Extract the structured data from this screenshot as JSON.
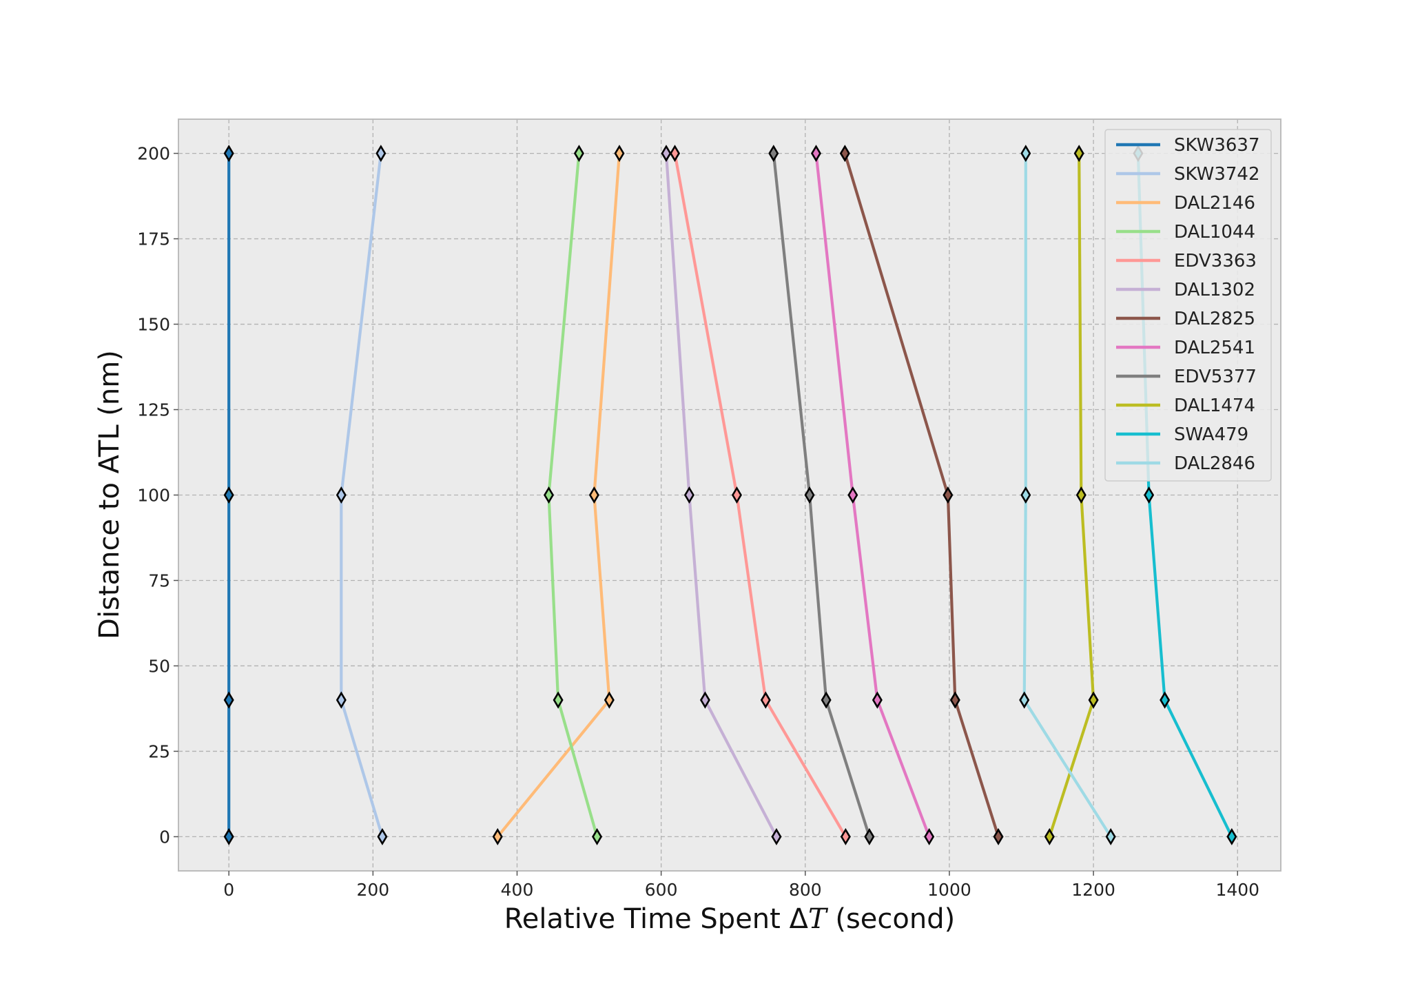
{
  "chart_data": {
    "type": "line",
    "xlabel": "Relative Time Spent ΔT (second)",
    "xlabel_parts": {
      "prefix": "Relative Time Spent ",
      "symbol_delta": "Δ",
      "symbol_var": "T",
      "suffix": " (second)"
    },
    "ylabel": "Distance to ATL (nm)",
    "xlim": [
      -70,
      1460
    ],
    "ylim": [
      -10,
      210
    ],
    "xticks": [
      0,
      200,
      400,
      600,
      800,
      1000,
      1200,
      1400
    ],
    "yticks": [
      0,
      25,
      50,
      75,
      100,
      125,
      150,
      175,
      200
    ],
    "grid": true,
    "legend_position": "top-right",
    "marker": "thin_diamond",
    "series": [
      {
        "name": "SKW3637",
        "color": "#1f77b4",
        "points": [
          [
            0,
            200
          ],
          [
            0,
            100
          ],
          [
            0,
            40
          ],
          [
            0,
            0
          ]
        ]
      },
      {
        "name": "SKW3742",
        "color": "#aec7e8",
        "points": [
          [
            211,
            200
          ],
          [
            156,
            100
          ],
          [
            156,
            40
          ],
          [
            213,
            0
          ]
        ]
      },
      {
        "name": "DAL2146",
        "color": "#ffbb78",
        "points": [
          [
            542,
            200
          ],
          [
            507,
            100
          ],
          [
            528,
            40
          ],
          [
            373,
            0
          ]
        ]
      },
      {
        "name": "DAL1044",
        "color": "#98df8a",
        "points": [
          [
            486,
            200
          ],
          [
            444,
            100
          ],
          [
            457,
            40
          ],
          [
            511,
            0
          ]
        ]
      },
      {
        "name": "EDV3363",
        "color": "#ff9896",
        "points": [
          [
            619,
            200
          ],
          [
            705,
            100
          ],
          [
            745,
            40
          ],
          [
            856,
            0
          ]
        ]
      },
      {
        "name": "DAL1302",
        "color": "#c5b0d5",
        "points": [
          [
            607,
            200
          ],
          [
            639,
            100
          ],
          [
            661,
            40
          ],
          [
            760,
            0
          ]
        ]
      },
      {
        "name": "DAL2825",
        "color": "#8c564b",
        "points": [
          [
            855,
            200
          ],
          [
            998,
            100
          ],
          [
            1008,
            40
          ],
          [
            1068,
            0
          ]
        ]
      },
      {
        "name": "DAL2541",
        "color": "#e377c2",
        "points": [
          [
            815,
            200
          ],
          [
            866,
            100
          ],
          [
            900,
            40
          ],
          [
            972,
            0
          ]
        ]
      },
      {
        "name": "EDV5377",
        "color": "#7f7f7f",
        "points": [
          [
            756,
            200
          ],
          [
            806,
            100
          ],
          [
            829,
            40
          ],
          [
            889,
            0
          ]
        ]
      },
      {
        "name": "DAL1474",
        "color": "#bcbd22",
        "points": [
          [
            1180,
            200
          ],
          [
            1183,
            100
          ],
          [
            1200,
            40
          ],
          [
            1139,
            0
          ]
        ]
      },
      {
        "name": "SWA479",
        "color": "#17becf",
        "points": [
          [
            1262,
            200
          ],
          [
            1277,
            100
          ],
          [
            1299,
            40
          ],
          [
            1392,
            0
          ]
        ]
      },
      {
        "name": "DAL2846",
        "color": "#9edae5",
        "points": [
          [
            1106,
            200
          ],
          [
            1106,
            100
          ],
          [
            1104,
            40
          ],
          [
            1224,
            0
          ]
        ]
      }
    ]
  }
}
